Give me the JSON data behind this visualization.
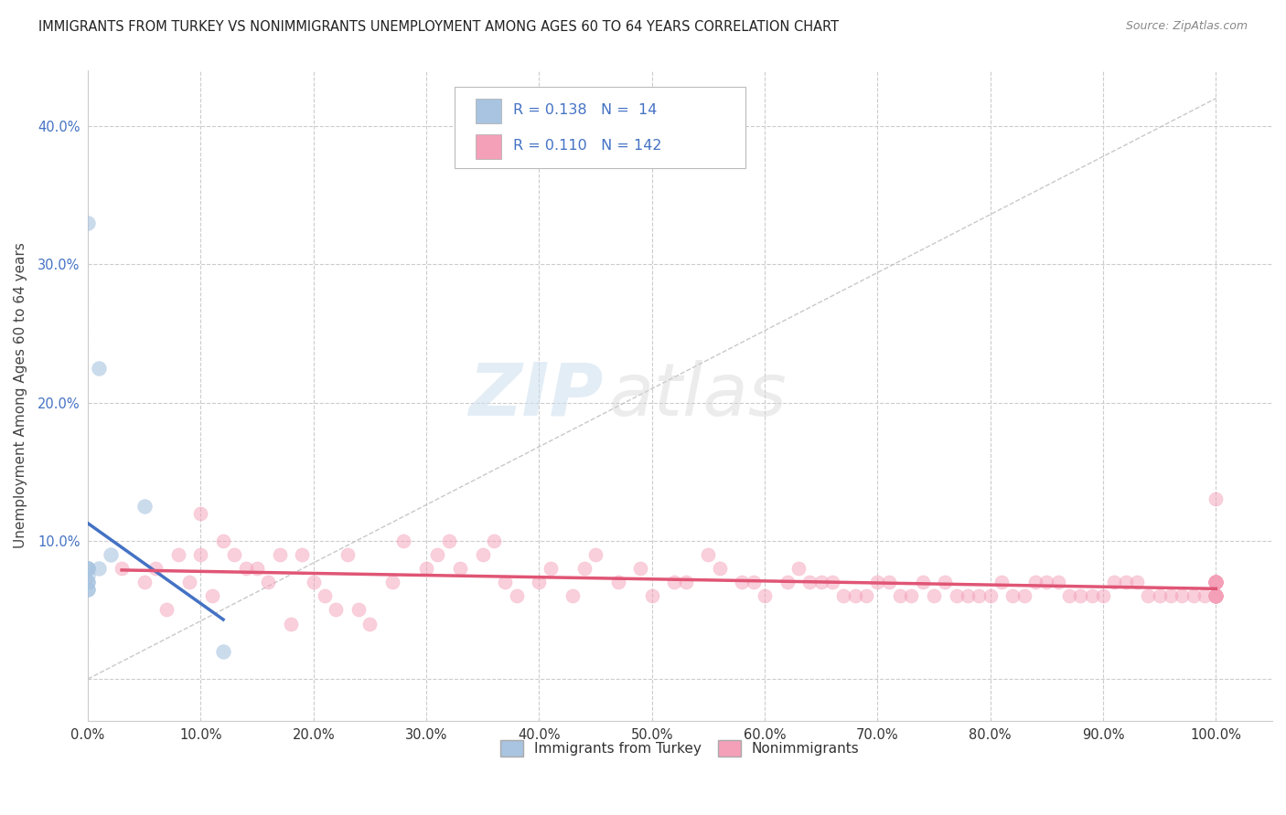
{
  "title": "IMMIGRANTS FROM TURKEY VS NONIMMIGRANTS UNEMPLOYMENT AMONG AGES 60 TO 64 YEARS CORRELATION CHART",
  "source": "Source: ZipAtlas.com",
  "ylabel": "Unemployment Among Ages 60 to 64 years",
  "xlim": [
    0.0,
    1.05
  ],
  "ylim": [
    -0.03,
    0.44
  ],
  "xticks": [
    0.0,
    0.1,
    0.2,
    0.3,
    0.4,
    0.5,
    0.6,
    0.7,
    0.8,
    0.9,
    1.0
  ],
  "xticklabels": [
    "0.0%",
    "10.0%",
    "20.0%",
    "30.0%",
    "40.0%",
    "50.0%",
    "60.0%",
    "70.0%",
    "80.0%",
    "90.0%",
    "100.0%"
  ],
  "yticks": [
    0.0,
    0.1,
    0.2,
    0.3,
    0.4
  ],
  "yticklabels": [
    "",
    "10.0%",
    "20.0%",
    "30.0%",
    "40.0%"
  ],
  "legend_label1": "Immigrants from Turkey",
  "legend_label2": "Nonimmigrants",
  "color_immigrants": "#a8c4e0",
  "color_nonimmigrants": "#f4a0b8",
  "color_trend_blue": "#4472c4",
  "color_trend_pink": "#e05575",
  "color_text_blue": "#4472c4",
  "watermark_zip": "ZIP",
  "watermark_atlas": "atlas",
  "background_color": "#ffffff",
  "grid_color": "#cccccc",
  "immigrants_x": [
    0.0,
    0.0,
    0.0,
    0.0,
    0.0,
    0.0,
    0.0,
    0.0,
    0.0,
    0.01,
    0.01,
    0.02,
    0.05,
    0.12
  ],
  "immigrants_y": [
    0.065,
    0.07,
    0.07,
    0.075,
    0.08,
    0.08,
    0.08,
    0.33,
    0.065,
    0.08,
    0.225,
    0.09,
    0.125,
    0.02
  ],
  "nonimmigrants_x": [
    0.03,
    0.05,
    0.06,
    0.07,
    0.08,
    0.09,
    0.1,
    0.1,
    0.11,
    0.12,
    0.13,
    0.14,
    0.15,
    0.16,
    0.17,
    0.18,
    0.19,
    0.2,
    0.21,
    0.22,
    0.23,
    0.24,
    0.25,
    0.27,
    0.28,
    0.3,
    0.31,
    0.32,
    0.33,
    0.35,
    0.36,
    0.37,
    0.38,
    0.4,
    0.41,
    0.43,
    0.44,
    0.45,
    0.47,
    0.49,
    0.5,
    0.52,
    0.53,
    0.55,
    0.56,
    0.58,
    0.59,
    0.6,
    0.62,
    0.63,
    0.64,
    0.65,
    0.66,
    0.67,
    0.68,
    0.69,
    0.7,
    0.71,
    0.72,
    0.73,
    0.74,
    0.75,
    0.76,
    0.77,
    0.78,
    0.79,
    0.8,
    0.81,
    0.82,
    0.83,
    0.84,
    0.85,
    0.86,
    0.87,
    0.88,
    0.89,
    0.9,
    0.91,
    0.92,
    0.93,
    0.94,
    0.95,
    0.96,
    0.97,
    0.98,
    0.99,
    1.0,
    1.0,
    1.0,
    1.0,
    1.0,
    1.0,
    1.0,
    1.0,
    1.0,
    1.0,
    1.0,
    1.0,
    1.0,
    1.0,
    1.0,
    1.0,
    1.0,
    1.0,
    1.0,
    1.0,
    1.0,
    1.0,
    1.0,
    1.0,
    1.0,
    1.0,
    1.0,
    1.0,
    1.0,
    1.0,
    1.0,
    1.0,
    1.0,
    1.0,
    1.0,
    1.0,
    1.0,
    1.0,
    1.0,
    1.0,
    1.0,
    1.0,
    1.0,
    1.0,
    1.0,
    1.0,
    1.0,
    1.0,
    1.0,
    1.0,
    1.0,
    1.0,
    1.0,
    1.0
  ],
  "nonimmigrants_y": [
    0.08,
    0.07,
    0.08,
    0.05,
    0.09,
    0.07,
    0.09,
    0.12,
    0.06,
    0.1,
    0.09,
    0.08,
    0.08,
    0.07,
    0.09,
    0.04,
    0.09,
    0.07,
    0.06,
    0.05,
    0.09,
    0.05,
    0.04,
    0.07,
    0.1,
    0.08,
    0.09,
    0.1,
    0.08,
    0.09,
    0.1,
    0.07,
    0.06,
    0.07,
    0.08,
    0.06,
    0.08,
    0.09,
    0.07,
    0.08,
    0.06,
    0.07,
    0.07,
    0.09,
    0.08,
    0.07,
    0.07,
    0.06,
    0.07,
    0.08,
    0.07,
    0.07,
    0.07,
    0.06,
    0.06,
    0.06,
    0.07,
    0.07,
    0.06,
    0.06,
    0.07,
    0.06,
    0.07,
    0.06,
    0.06,
    0.06,
    0.06,
    0.07,
    0.06,
    0.06,
    0.07,
    0.07,
    0.07,
    0.06,
    0.06,
    0.06,
    0.06,
    0.07,
    0.07,
    0.07,
    0.06,
    0.06,
    0.06,
    0.06,
    0.06,
    0.06,
    0.06,
    0.06,
    0.06,
    0.06,
    0.06,
    0.07,
    0.07,
    0.07,
    0.06,
    0.06,
    0.06,
    0.06,
    0.07,
    0.06,
    0.06,
    0.07,
    0.07,
    0.06,
    0.06,
    0.13,
    0.07,
    0.07,
    0.07,
    0.06,
    0.06,
    0.07,
    0.07,
    0.06,
    0.07,
    0.07,
    0.06,
    0.06,
    0.07,
    0.06,
    0.06,
    0.07,
    0.06,
    0.06,
    0.07,
    0.07,
    0.07,
    0.07,
    0.07,
    0.07,
    0.07,
    0.07,
    0.07,
    0.07,
    0.07,
    0.07,
    0.07,
    0.07,
    0.07,
    0.07
  ]
}
